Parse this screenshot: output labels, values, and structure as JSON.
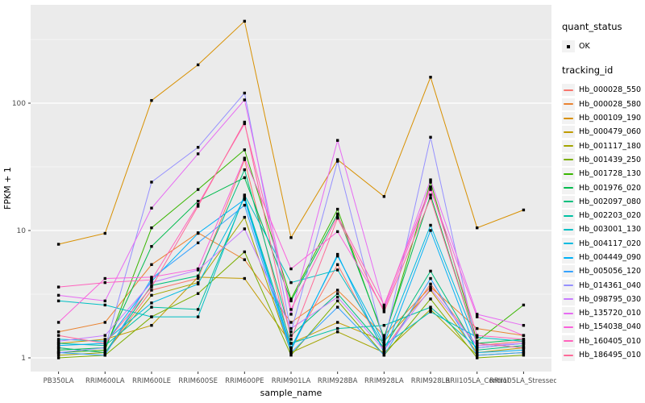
{
  "chart_data": {
    "type": "line",
    "title": "",
    "xlabel": "sample_name",
    "ylabel": "FPKM + 1",
    "y_scale": "log10",
    "y_ticks": [
      1,
      10,
      100
    ],
    "y_minor_ticks": [
      3.162,
      31.62,
      316.2
    ],
    "ylim": [
      1,
      592
    ],
    "grid": "on",
    "legend_position": "right",
    "panel_bg": "#EBEBEB",
    "grid_color": "#FFFFFF",
    "axis_text_color": "#4D4D4D",
    "point_color": "#000000",
    "categories": [
      "PB350LA",
      "RRIM600LA",
      "RRIM600LE",
      "RRIM600SE",
      "RRIM600PE",
      "RRIM901LA",
      "RRIM928BA",
      "RRIM928LA",
      "RRIM928LB",
      "RRII105LA_Control",
      "RRII105LA_Stressed"
    ],
    "series": [
      {
        "name": "Hb_000028_550",
        "color": "#F8766D",
        "values": [
          1.2,
          1.1,
          3.4,
          4.2,
          36,
          1.2,
          5.4,
          1.15,
          3.8,
          1.25,
          1.35
        ]
      },
      {
        "name": "Hb_000028_580",
        "color": "#EA8331",
        "values": [
          1.6,
          1.9,
          5.4,
          9.6,
          5.9,
          1.9,
          3.4,
          1.5,
          3.6,
          1.7,
          1.5
        ]
      },
      {
        "name": "Hb_000109_190",
        "color": "#D89000",
        "values": [
          7.8,
          9.5,
          105,
          200,
          440,
          8.8,
          36,
          18.5,
          160,
          10.5,
          14.5
        ]
      },
      {
        "name": "Hb_000479_060",
        "color": "#C09B00",
        "values": [
          1.3,
          1.4,
          1.8,
          4.3,
          4.2,
          1.3,
          1.9,
          1.35,
          3.4,
          1.1,
          1.2
        ]
      },
      {
        "name": "Hb_001117_180",
        "color": "#A3A500",
        "values": [
          1.05,
          1.1,
          3.1,
          3.9,
          12.7,
          1.1,
          1.6,
          1.1,
          2.4,
          1.05,
          1.1
        ]
      },
      {
        "name": "Hb_001439_250",
        "color": "#7CAE00",
        "values": [
          1.0,
          1.05,
          2.1,
          3.2,
          6.8,
          1.05,
          2.8,
          1.05,
          2.9,
          1.0,
          1.05
        ]
      },
      {
        "name": "Hb_001728_130",
        "color": "#39B600",
        "values": [
          1.1,
          1.15,
          10.5,
          21,
          43,
          2.9,
          14.7,
          1.4,
          24,
          1.35,
          2.6
        ]
      },
      {
        "name": "Hb_001976_020",
        "color": "#00BB4E",
        "values": [
          1.15,
          1.2,
          7.5,
          17,
          26,
          2.8,
          13.5,
          1.45,
          19,
          1.3,
          1.4
        ]
      },
      {
        "name": "Hb_002097_080",
        "color": "#00BF7D",
        "values": [
          1.2,
          1.1,
          3.7,
          4.4,
          30,
          1.5,
          3.2,
          1.2,
          4.8,
          1.15,
          1.25
        ]
      },
      {
        "name": "Hb_002203_020",
        "color": "#00C1A3",
        "values": [
          1.3,
          1.25,
          2.5,
          2.4,
          18.5,
          1.3,
          1.7,
          1.8,
          2.5,
          1.2,
          1.3
        ]
      },
      {
        "name": "Hb_003001_130",
        "color": "#00BFC4",
        "values": [
          2.8,
          2.6,
          2.1,
          2.1,
          19,
          3.9,
          4.9,
          1.25,
          2.3,
          1.45,
          1.35
        ]
      },
      {
        "name": "Hb_004117_020",
        "color": "#00BAE0",
        "values": [
          1.4,
          1.35,
          2.7,
          3.8,
          18,
          1.2,
          6.3,
          1.3,
          11,
          1.3,
          1.2
        ]
      },
      {
        "name": "Hb_004449_090",
        "color": "#00B0F6",
        "values": [
          1.25,
          1.3,
          4.0,
          9.5,
          17.5,
          1.15,
          6.5,
          1.1,
          10,
          1.1,
          1.15
        ]
      },
      {
        "name": "Hb_005056_120",
        "color": "#35A2FF",
        "values": [
          1.1,
          1.05,
          4.2,
          8.0,
          15.8,
          1.1,
          2.5,
          1.05,
          4.2,
          1.05,
          1.1
        ]
      },
      {
        "name": "Hb_014361_040",
        "color": "#9590FF",
        "values": [
          1.1,
          1.2,
          24,
          45,
          120,
          1.6,
          35,
          1.3,
          54,
          1.2,
          1.3
        ]
      },
      {
        "name": "Hb_098795_030",
        "color": "#C77CFF",
        "values": [
          1.35,
          1.5,
          3.9,
          4.9,
          10.3,
          1.7,
          3.0,
          1.15,
          3.5,
          1.25,
          1.3
        ]
      },
      {
        "name": "Hb_135720_010",
        "color": "#E76BF3",
        "values": [
          3.1,
          2.8,
          15,
          40,
          106,
          2.2,
          51,
          2.5,
          25,
          2.2,
          1.8
        ]
      },
      {
        "name": "Hb_154038_040",
        "color": "#FA62DB",
        "values": [
          1.9,
          4.2,
          4.3,
          5.0,
          37,
          5.0,
          9.8,
          2.4,
          21,
          2.1,
          1.5
        ]
      },
      {
        "name": "Hb_160405_010",
        "color": "#FF62BC",
        "values": [
          3.6,
          3.9,
          4.1,
          16,
          69,
          2.4,
          13,
          2.6,
          22,
          1.5,
          1.4
        ]
      },
      {
        "name": "Hb_186495_010",
        "color": "#FF6A98",
        "values": [
          1.5,
          1.3,
          3.6,
          15.5,
          71,
          1.4,
          12.5,
          2.3,
          18,
          1.3,
          1.2
        ]
      }
    ],
    "legend": {
      "quant_status_title": "quant_status",
      "quant_status_value": "OK",
      "tracking_id_title": "tracking_id"
    }
  }
}
